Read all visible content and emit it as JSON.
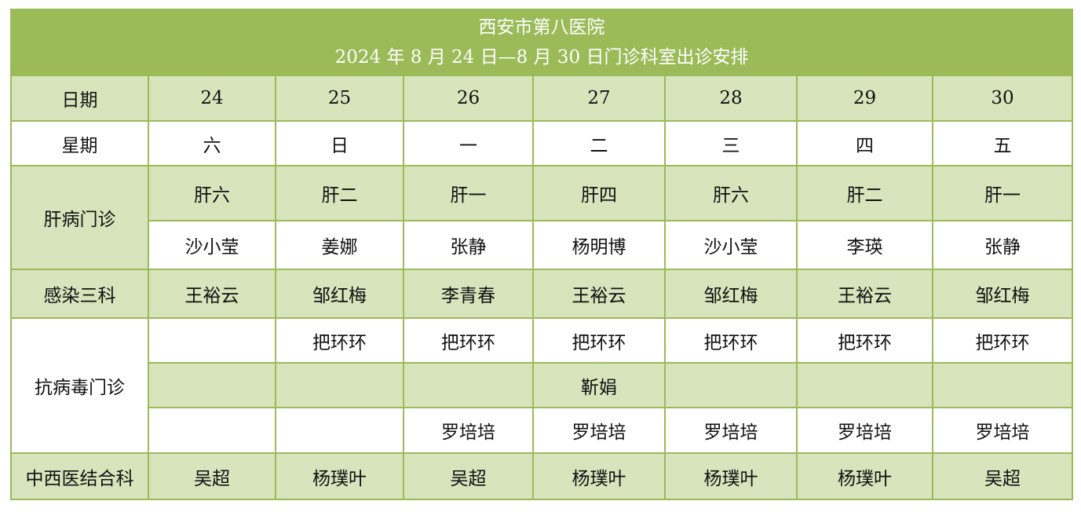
{
  "title": {
    "hospital": "西安市第八医院",
    "subtitle": "2024 年 8 月 24 日—8 月 30 日门诊科室出诊安排"
  },
  "colors": {
    "header": "#9bbb59",
    "band": "#d7e4bc",
    "white": "#ffffff"
  },
  "dates": {
    "label": "日期",
    "values": [
      "24",
      "25",
      "26",
      "27",
      "28",
      "29",
      "30"
    ]
  },
  "weekdays": {
    "label": "星期",
    "values": [
      "六",
      "日",
      "一",
      "二",
      "三",
      "四",
      "五"
    ]
  },
  "liver": {
    "label": "肝病门诊",
    "rooms": [
      "肝六",
      "肝二",
      "肝一",
      "肝四",
      "肝六",
      "肝二",
      "肝一"
    ],
    "doctors": [
      "沙小莹",
      "姜娜",
      "张静",
      "杨明博",
      "沙小莹",
      "李瑛",
      "张静"
    ]
  },
  "infection": {
    "label": "感染三科",
    "doctors": [
      "王裕云",
      "邹红梅",
      "李青春",
      "王裕云",
      "邹红梅",
      "王裕云",
      "邹红梅"
    ]
  },
  "antiviral": {
    "label": "抗病毒门诊",
    "row1": [
      "",
      "把环环",
      "把环环",
      "把环环",
      "把环环",
      "把环环",
      "把环环"
    ],
    "row2": [
      "",
      "",
      "",
      "靳娟",
      "",
      "",
      ""
    ],
    "row3": [
      "",
      "",
      "罗培培",
      "罗培培",
      "罗培培",
      "罗培培",
      "罗培培"
    ]
  },
  "tcm": {
    "label": "中西医结合科",
    "doctors": [
      "吴超",
      "杨璞叶",
      "吴超",
      "杨璞叶",
      "杨璞叶",
      "杨璞叶",
      "吴超"
    ]
  }
}
